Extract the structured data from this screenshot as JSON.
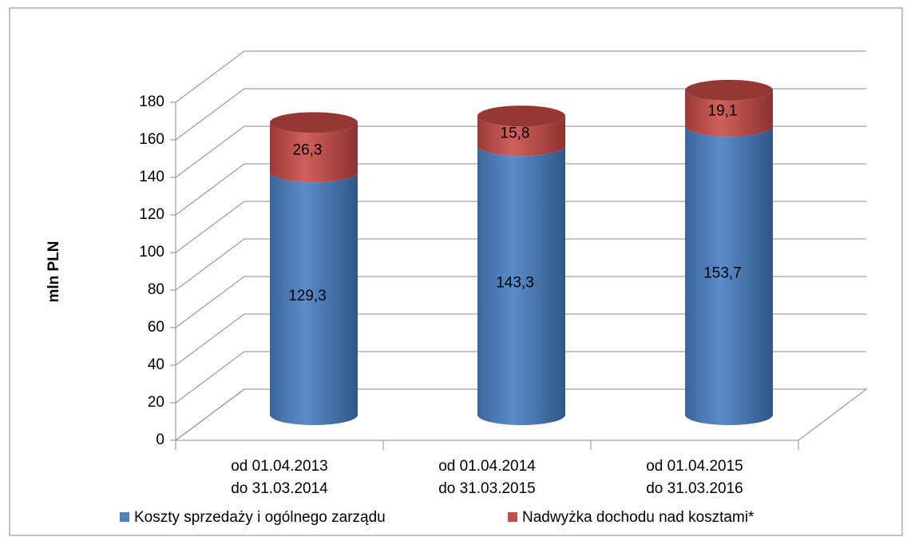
{
  "chart_data": {
    "type": "bar3d_stacked_cylinder",
    "y_label": "mln PLN",
    "categories": [
      [
        "od 01.04.2013",
        "do 31.03.2014"
      ],
      [
        "od 01.04.2014",
        "do 31.03.2015"
      ],
      [
        "od 01.04.2015",
        "do 31.03.2016"
      ]
    ],
    "series": [
      {
        "name": "Koszty sprzedaży i ogólnego zarządu",
        "color": "#4f81bd",
        "values": [
          129.3,
          143.3,
          153.7
        ],
        "value_labels": [
          "129,3",
          "143,3",
          "153,7"
        ]
      },
      {
        "name": "Nadwyżka dochodu nad kosztami*",
        "color": "#c0504d",
        "values": [
          26.3,
          15.8,
          19.1
        ],
        "value_labels": [
          "26,3",
          "15,8",
          "19,1"
        ]
      }
    ],
    "ylim": [
      0,
      180
    ],
    "yticks": [
      0,
      20,
      40,
      60,
      80,
      100,
      120,
      140,
      160,
      180
    ],
    "grid": true,
    "legend": "bottom"
  }
}
